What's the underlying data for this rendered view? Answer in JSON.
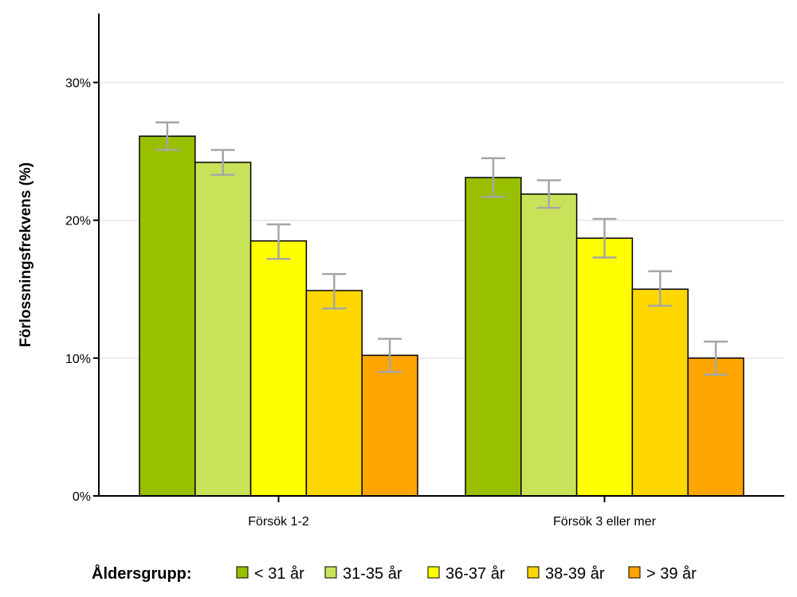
{
  "chart_data": {
    "type": "bar",
    "title": "",
    "xlabel": "",
    "ylabel": "Förlossningsfrekvens (%)",
    "ylim": [
      0,
      35
    ],
    "yticks": [
      0,
      10,
      20,
      30
    ],
    "ytick_labels": [
      "0%",
      "10%",
      "20%",
      "30%"
    ],
    "grid": "horizontal",
    "categories": [
      "Försök 1-2",
      "Försök 3 eller mer"
    ],
    "legend_title": "Åldersgrupp:",
    "legend_position": "bottom",
    "series": [
      {
        "name": "< 31 år",
        "color": "#98bf00",
        "values": [
          26.1,
          23.1
        ],
        "err_low": [
          25.1,
          21.7
        ],
        "err_high": [
          27.1,
          24.5
        ]
      },
      {
        "name": "31-35 år",
        "color": "#c8e35a",
        "values": [
          24.2,
          21.9
        ],
        "err_low": [
          23.3,
          20.9
        ],
        "err_high": [
          25.1,
          22.9
        ]
      },
      {
        "name": "36-37 år",
        "color": "#ffff00",
        "values": [
          18.5,
          18.7
        ],
        "err_low": [
          17.2,
          17.3
        ],
        "err_high": [
          19.7,
          20.1
        ]
      },
      {
        "name": "38-39 år",
        "color": "#ffd700",
        "values": [
          14.9,
          15.0
        ],
        "err_low": [
          13.6,
          13.8
        ],
        "err_high": [
          16.1,
          16.3
        ]
      },
      {
        "name": "> 39 år",
        "color": "#ffa500",
        "values": [
          10.2,
          10.0
        ],
        "err_low": [
          9.0,
          8.8
        ],
        "err_high": [
          11.4,
          11.2
        ]
      }
    ]
  }
}
